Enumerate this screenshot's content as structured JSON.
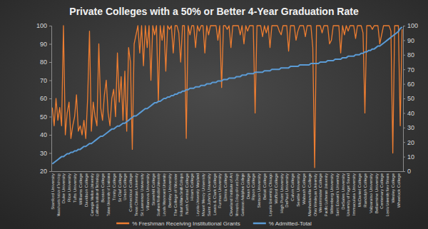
{
  "chart_data": {
    "type": "line",
    "title": "Private Colleges with a 50% or Better 4-Year Graduation Rate",
    "categories": [
      "Stanford University",
      null,
      null,
      "Massachusetts Institute of Technology",
      null,
      null,
      "Duke University",
      null,
      null,
      "Rice University",
      null,
      null,
      "Tufts University",
      null,
      null,
      "Williams College",
      null,
      null,
      "Davidson College",
      null,
      null,
      "Carnegie Mellon University",
      null,
      null,
      "California Institute of Technology",
      null,
      null,
      "Boston College",
      null,
      null,
      "Tulane University of Louisiana",
      null,
      null,
      "Trinity College",
      null,
      null,
      "St Olaf College",
      null,
      null,
      "Union College",
      null,
      null,
      "Connecticut College",
      null,
      null,
      "Texas Christian University",
      null,
      null,
      "St Lawrence University",
      null,
      null,
      "Villanova University",
      null,
      null,
      "Stonehill College",
      null,
      null,
      "Southern Methodist University",
      null,
      null,
      "Loyola Marymount University",
      null,
      null,
      "Bentley University",
      null,
      null,
      "The College of Wooster",
      null,
      null,
      "Hobart William Smith Colleges",
      null,
      null,
      "North Central College",
      null,
      null,
      "Hiram College",
      null,
      null,
      "Loyola University Maryland",
      null,
      null,
      "Mount Mercy University",
      null,
      null,
      "Saint John's University",
      null,
      null,
      "Lewis & Clark College",
      null,
      null,
      "Furman University",
      null,
      null,
      "Elmira College",
      null,
      null,
      "Cleveland Institute of Art",
      null,
      null,
      "Minneapolis College of Art and Design",
      null,
      null,
      "Gustavus Adolphus College",
      null,
      null,
      "Dean College",
      null,
      null,
      "Ripon College",
      null,
      null,
      "Stetson University",
      null,
      null,
      "Beloit College",
      null,
      null,
      "Loyola University Chicago",
      null,
      null,
      "Wofford College",
      null,
      null,
      "High Point University",
      null,
      null,
      "DePaul University",
      null,
      null,
      "Calvin College",
      null,
      null,
      "Seattle University",
      null,
      null,
      "Wabash College",
      null,
      null,
      "Manhattanville College",
      null,
      null,
      "Ohio Wesleyan University",
      null,
      null,
      "Westminster College",
      null,
      null,
      "Pacific Lutheran University",
      null,
      null,
      "Wittenberg University",
      null,
      null,
      "Saint Edward's University",
      null,
      null,
      "DeSales University",
      null,
      null,
      "University of Puget Sound",
      null,
      null,
      "Immaculata University",
      null,
      null,
      "McDaniel College",
      null,
      null,
      "Randolph College",
      null,
      null,
      "Valparaiso University",
      null,
      null,
      "Bellarmine University",
      null,
      null,
      "Centenary College",
      null,
      null,
      "Loyola University New Orleans",
      null,
      null,
      "Wesley College",
      null,
      null,
      "Wheelock College",
      null,
      null
    ],
    "series": [
      {
        "name": "% Freshman Receiving Institutional Grants",
        "color": "#ED7D31",
        "values": [
          55,
          45,
          60,
          48,
          55,
          45,
          100,
          40,
          52,
          58,
          38,
          45,
          50,
          62,
          42,
          45,
          40,
          48,
          38,
          60,
          97,
          42,
          58,
          50,
          45,
          90,
          55,
          48,
          62,
          70,
          52,
          45,
          60,
          65,
          50,
          85,
          58,
          72,
          48,
          75,
          42,
          88,
          80,
          32,
          90,
          95,
          100,
          85,
          100,
          78,
          100,
          88,
          100,
          70,
          100,
          95,
          100,
          58,
          100,
          92,
          100,
          75,
          100,
          98,
          100,
          85,
          100,
          100,
          96,
          80,
          100,
          100,
          38,
          100,
          95,
          100,
          100,
          88,
          100,
          97,
          100,
          100,
          85,
          100,
          95,
          100,
          100,
          100,
          100,
          92,
          100,
          66,
          100,
          100,
          98,
          100,
          88,
          100,
          100,
          100,
          100,
          95,
          100,
          90,
          100,
          97,
          100,
          100,
          100,
          52,
          100,
          100,
          100,
          94,
          100,
          96,
          100,
          88,
          100,
          100,
          100,
          100,
          97,
          95,
          100,
          100,
          100,
          86,
          100,
          100,
          100,
          92,
          97,
          100,
          100,
          100,
          94,
          100,
          100,
          100,
          88,
          22,
          100,
          100,
          100,
          96,
          100,
          100,
          100,
          90,
          92,
          100,
          100,
          100,
          100,
          85,
          100,
          95,
          100,
          97,
          100,
          100,
          100,
          93,
          100,
          100,
          100,
          96,
          52,
          100,
          100,
          100,
          98,
          100,
          100,
          100,
          90,
          95,
          100,
          100,
          100,
          100,
          97,
          30,
          100,
          100,
          100,
          45,
          98
        ]
      },
      {
        "name": "% Admitted-Total",
        "color": "#5B9BD5",
        "axis": "y2",
        "values": [
          5,
          6,
          7,
          8,
          9,
          10,
          10,
          11,
          12,
          12,
          13,
          13,
          14,
          14,
          15,
          15,
          16,
          17,
          17,
          18,
          19,
          19,
          20,
          21,
          22,
          23,
          24,
          24,
          25,
          26,
          27,
          28,
          29,
          29,
          30,
          31,
          31,
          32,
          33,
          33,
          34,
          35,
          36,
          37,
          38,
          38,
          39,
          40,
          41,
          42,
          43,
          43,
          44,
          45,
          46,
          47,
          47,
          48,
          48,
          49,
          50,
          50,
          51,
          51,
          52,
          52,
          53,
          53,
          54,
          54,
          55,
          55,
          56,
          56,
          57,
          57,
          57,
          58,
          58,
          58,
          59,
          59,
          59,
          60,
          60,
          60,
          61,
          61,
          61,
          62,
          62,
          62,
          63,
          63,
          63,
          64,
          64,
          64,
          64,
          65,
          65,
          65,
          66,
          66,
          66,
          67,
          67,
          67,
          67,
          68,
          68,
          68,
          68,
          68,
          69,
          69,
          69,
          69,
          70,
          70,
          70,
          70,
          70,
          71,
          71,
          71,
          71,
          71,
          72,
          72,
          72,
          72,
          72,
          73,
          73,
          73,
          73,
          73,
          73,
          74,
          74,
          74,
          74,
          74,
          75,
          75,
          75,
          75,
          76,
          76,
          76,
          76,
          77,
          77,
          77,
          77,
          78,
          78,
          78,
          79,
          79,
          79,
          79,
          80,
          80,
          80,
          81,
          81,
          82,
          82,
          83,
          83,
          84,
          84,
          85,
          86,
          86,
          87,
          88,
          89,
          90,
          91,
          92,
          93,
          94,
          95,
          96,
          98,
          99
        ]
      }
    ],
    "ylim": [
      20,
      100
    ],
    "yticks": [
      20,
      30,
      40,
      50,
      60,
      70,
      80,
      90,
      100
    ],
    "y2lim": [
      0,
      100
    ],
    "y2ticks": [
      0,
      10,
      20,
      30,
      40,
      50,
      60,
      70,
      80,
      90,
      100
    ],
    "grid": false,
    "legend": "bottom"
  }
}
